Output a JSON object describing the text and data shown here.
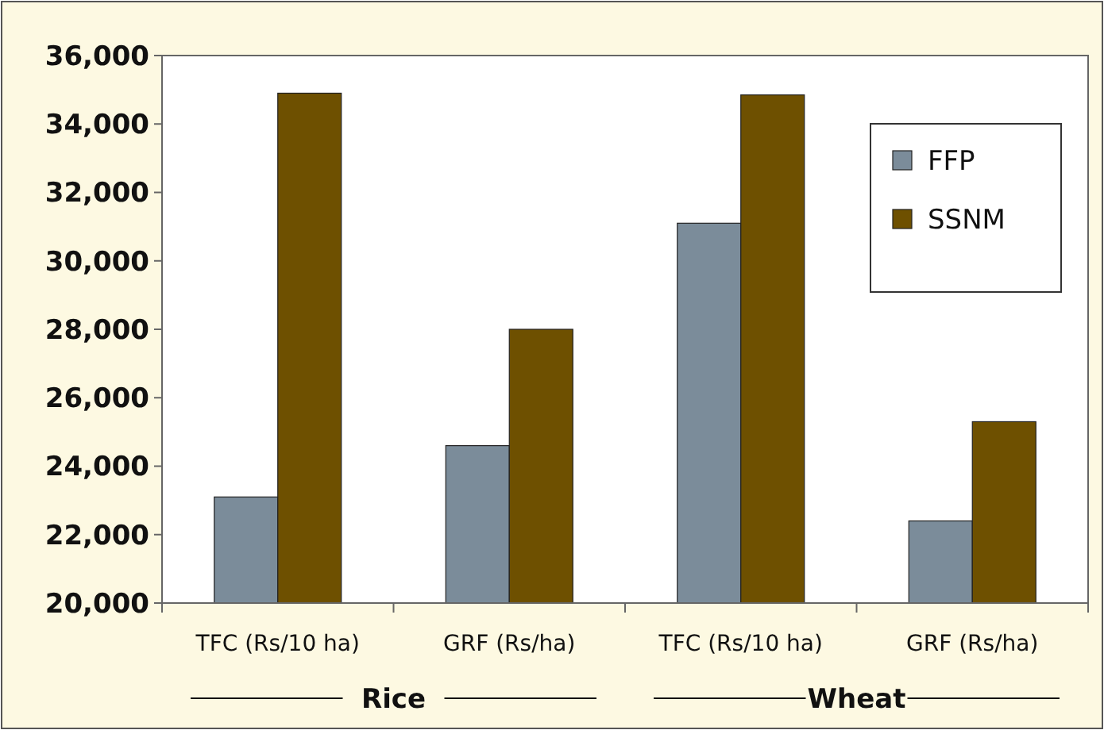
{
  "chart_data": {
    "type": "bar",
    "categories": [
      "TFC (Rs/10 ha)",
      "GRF (Rs/ha)",
      "TFC (Rs/10 ha)",
      "GRF (Rs/ha)"
    ],
    "series": [
      {
        "name": "FFP",
        "color": "#7b8c9a",
        "values": [
          23100,
          24600,
          31100,
          22400
        ]
      },
      {
        "name": "SSNM",
        "color": "#6e5000",
        "values": [
          34900,
          28000,
          34850,
          25300
        ]
      }
    ],
    "ylim": [
      20000,
      36000
    ],
    "yticks": [
      {
        "value": 20000,
        "label": "20,000"
      },
      {
        "value": 22000,
        "label": "22,000"
      },
      {
        "value": 24000,
        "label": "24,000"
      },
      {
        "value": 26000,
        "label": "26,000"
      },
      {
        "value": 28000,
        "label": "28,000"
      },
      {
        "value": 30000,
        "label": "30,000"
      },
      {
        "value": 32000,
        "label": "32,000"
      },
      {
        "value": 34000,
        "label": "34,000"
      },
      {
        "value": 36000,
        "label": "36,000"
      }
    ],
    "annotations": [
      "Rice",
      "Wheat"
    ],
    "legend": "top right",
    "grid": false
  }
}
